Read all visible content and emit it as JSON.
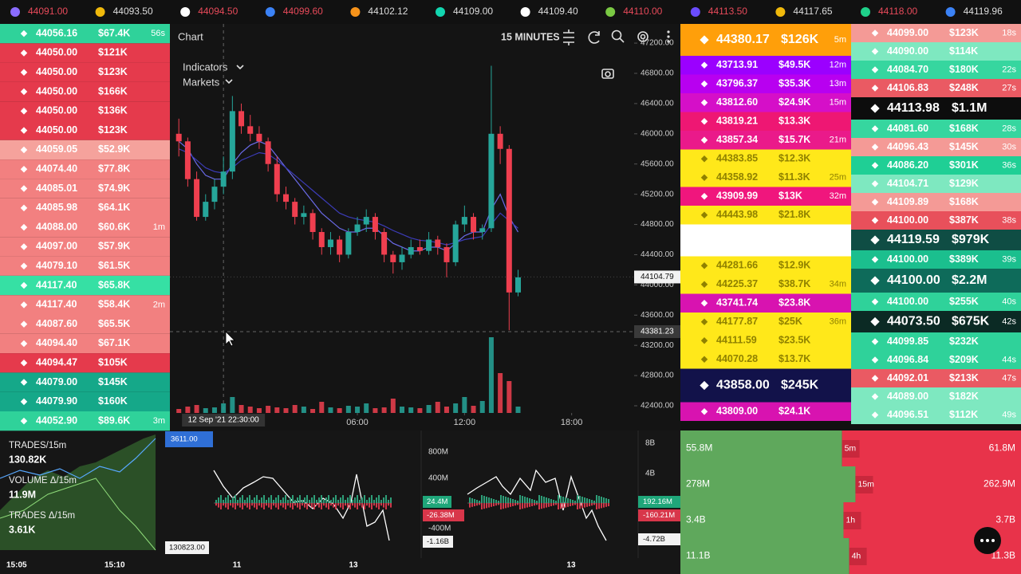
{
  "ticker": [
    {
      "price": "44091.00",
      "color": "#e84a5a",
      "icon": "#8a6cff"
    },
    {
      "price": "44093.50",
      "color": "#dddddd",
      "icon": "#f0b90b"
    },
    {
      "price": "44094.50",
      "color": "#e84a5a",
      "icon": "#ffffff"
    },
    {
      "price": "44099.60",
      "color": "#e84a5a",
      "icon": "#3b82f6"
    },
    {
      "price": "44102.12",
      "color": "#dddddd",
      "icon": "#f7931a"
    },
    {
      "price": "44109.00",
      "color": "#dddddd",
      "icon": "#12d6b0"
    },
    {
      "price": "44109.40",
      "color": "#dddddd",
      "icon": "#ffffff"
    },
    {
      "price": "44110.00",
      "color": "#e84a5a",
      "icon": "#7ac943"
    },
    {
      "price": "44113.50",
      "color": "#e84a5a",
      "icon": "#6a4cff"
    },
    {
      "price": "44117.65",
      "color": "#dddddd",
      "icon": "#f0b90b"
    },
    {
      "price": "44118.00",
      "color": "#e84a5a",
      "icon": "#1fd18a"
    },
    {
      "price": "44119.96",
      "color": "#dddddd",
      "icon": "#3b82f6"
    }
  ],
  "left_trades": [
    {
      "price": "44056.16",
      "amount": "$67.4K",
      "age": "56s",
      "color": "#2fd29a"
    },
    {
      "price": "44050.00",
      "amount": "$121K",
      "color": "#e53a4c"
    },
    {
      "price": "44050.00",
      "amount": "$123K",
      "color": "#e53a4c"
    },
    {
      "price": "44050.00",
      "amount": "$166K",
      "color": "#e53a4c"
    },
    {
      "price": "44050.00",
      "amount": "$136K",
      "color": "#e53a4c"
    },
    {
      "price": "44050.00",
      "amount": "$123K",
      "color": "#e53a4c"
    },
    {
      "price": "44059.05",
      "amount": "$52.9K",
      "color": "#f5a29c"
    },
    {
      "price": "44074.40",
      "amount": "$77.8K",
      "color": "#f28080"
    },
    {
      "price": "44085.01",
      "amount": "$74.9K",
      "color": "#f28080"
    },
    {
      "price": "44085.98",
      "amount": "$64.1K",
      "color": "#f28080"
    },
    {
      "price": "44088.00",
      "amount": "$60.6K",
      "age": "1m",
      "color": "#f28080"
    },
    {
      "price": "44097.00",
      "amount": "$57.9K",
      "color": "#f28080"
    },
    {
      "price": "44079.10",
      "amount": "$61.5K",
      "color": "#f28080"
    },
    {
      "price": "44117.40",
      "amount": "$65.8K",
      "color": "#36e0a4"
    },
    {
      "price": "44117.40",
      "amount": "$58.4K",
      "age": "2m",
      "color": "#f28080"
    },
    {
      "price": "44087.60",
      "amount": "$65.5K",
      "color": "#f28080"
    },
    {
      "price": "44094.40",
      "amount": "$67.1K",
      "color": "#f28080"
    },
    {
      "price": "44094.47",
      "amount": "$105K",
      "color": "#e53a4c"
    },
    {
      "price": "44079.00",
      "amount": "$145K",
      "color": "#15a889"
    },
    {
      "price": "44079.90",
      "amount": "$160K",
      "color": "#15a889"
    },
    {
      "price": "44052.90",
      "amount": "$89.6K",
      "age": "3m",
      "color": "#2fd29a"
    }
  ],
  "chart": {
    "title": "Chart",
    "timeframe": "15 MINUTES",
    "menus": [
      "Indicators",
      "Markets"
    ],
    "ylim": [
      42073,
      47454
    ],
    "xlim": [
      -1,
      51
    ],
    "yticks": [
      {
        "value": 42400,
        "label": "42400.00"
      },
      {
        "value": 42800,
        "label": "42800.00"
      },
      {
        "value": 43200,
        "label": "43200.00"
      },
      {
        "value": 43600,
        "label": "43600.00"
      },
      {
        "value": 44000,
        "label": "44000.00"
      },
      {
        "value": 44400,
        "label": "44400.00"
      },
      {
        "value": 44800,
        "label": "44800.00"
      },
      {
        "value": 45200,
        "label": "45200.00"
      },
      {
        "value": 45600,
        "label": "45600.00"
      },
      {
        "value": 46000,
        "label": "46000.00"
      },
      {
        "value": 46400,
        "label": "46400.00"
      },
      {
        "value": 46800,
        "label": "46800.00"
      },
      {
        "value": 47200,
        "label": "47200.00"
      }
    ],
    "xticks": [
      {
        "value": 20,
        "label": "06:00"
      },
      {
        "value": 32,
        "label": "12:00"
      },
      {
        "value": 44,
        "label": "18:00"
      }
    ],
    "crosshair_time": {
      "value": 5,
      "label": "12 Sep '21 22:30:00"
    },
    "last_price": {
      "value": 44104.79,
      "label": "44104.79"
    },
    "crosshair_price": {
      "value": 43381.23,
      "label": "43381.23"
    },
    "up_color": "#26a69a",
    "down_color": "#ef3f4f",
    "candles": [
      [
        46000,
        46200,
        45700,
        45900
      ],
      [
        45900,
        45950,
        45300,
        45400
      ],
      [
        45400,
        45500,
        44850,
        44900
      ],
      [
        44900,
        45200,
        44850,
        45100
      ],
      [
        45100,
        45400,
        45000,
        45300
      ],
      [
        45300,
        45700,
        45200,
        45500
      ],
      [
        45500,
        46500,
        45400,
        46300
      ],
      [
        46300,
        46400,
        46000,
        46100
      ],
      [
        46100,
        46250,
        45900,
        46000
      ],
      [
        46000,
        46100,
        45800,
        45900
      ],
      [
        45900,
        45950,
        45500,
        45600
      ],
      [
        45600,
        45700,
        45100,
        45200
      ],
      [
        45200,
        45300,
        45000,
        45100
      ],
      [
        45100,
        45150,
        44800,
        44900
      ],
      [
        44900,
        45050,
        44800,
        44950
      ],
      [
        44950,
        45000,
        44600,
        44700
      ],
      [
        44700,
        44750,
        44400,
        44500
      ],
      [
        44500,
        44700,
        44400,
        44600
      ],
      [
        44600,
        44650,
        44300,
        44400
      ],
      [
        44400,
        44750,
        44350,
        44700
      ],
      [
        44700,
        44900,
        44650,
        44800
      ],
      [
        44800,
        45000,
        44700,
        44900
      ],
      [
        44900,
        44950,
        44600,
        44700
      ],
      [
        44700,
        44750,
        44300,
        44400
      ],
      [
        44400,
        44450,
        44150,
        44300
      ],
      [
        44300,
        44500,
        44200,
        44400
      ],
      [
        44400,
        44600,
        44350,
        44500
      ],
      [
        44500,
        44600,
        44400,
        44450
      ],
      [
        44450,
        44700,
        44400,
        44600
      ],
      [
        44600,
        44650,
        44400,
        44500
      ],
      [
        44500,
        44550,
        44100,
        44300
      ],
      [
        44300,
        44850,
        44250,
        44800
      ],
      [
        44800,
        45050,
        44700,
        44900
      ],
      [
        44900,
        44950,
        44600,
        44700
      ],
      [
        44700,
        44800,
        44600,
        44750
      ],
      [
        44750,
        46900,
        44700,
        46000
      ],
      [
        46000,
        46100,
        45600,
        45800
      ],
      [
        45800,
        45850,
        43400,
        43900
      ],
      [
        43900,
        44200,
        43850,
        44100
      ]
    ],
    "ma_fast": {
      "color": "#6a6ae8",
      "values": [
        45900,
        45800,
        45600,
        45450,
        45400,
        45400,
        45600,
        45750,
        45850,
        45900,
        45850,
        45700,
        45550,
        45400,
        45250,
        45100,
        44950,
        44850,
        44750,
        44700,
        44700,
        44750,
        44750,
        44650,
        44550,
        44500,
        44450,
        44450,
        44500,
        44500,
        44450,
        44550,
        44650,
        44700,
        44700,
        45000,
        45200,
        44900,
        44700
      ]
    },
    "ma_slow": {
      "color": "#3c3cb8",
      "values": [
        45800,
        45750,
        45650,
        45550,
        45500,
        45480,
        45550,
        45650,
        45700,
        45750,
        45730,
        45650,
        45550,
        45450,
        45350,
        45250,
        45150,
        45050,
        44950,
        44900,
        44870,
        44850,
        44830,
        44780,
        44720,
        44670,
        44620,
        44590,
        44580,
        44560,
        44530,
        44560,
        44600,
        44620,
        44640,
        44800,
        44950,
        44850,
        44750
      ]
    },
    "volume": [
      5,
      8,
      10,
      6,
      7,
      12,
      20,
      10,
      8,
      6,
      9,
      7,
      6,
      10,
      8,
      5,
      14,
      7,
      6,
      9,
      8,
      12,
      6,
      7,
      18,
      8,
      7,
      6,
      10,
      14,
      8,
      12,
      20,
      9,
      15,
      95,
      50,
      40,
      8
    ]
  },
  "feed": [
    {
      "price": "44380.17",
      "amount": "$126K",
      "age": "5m",
      "color": "#ff9f0a"
    },
    {
      "price": "43713.91",
      "amount": "$49.5K",
      "age": "12m",
      "color": "#9b00ff"
    },
    {
      "price": "43796.37",
      "amount": "$35.3K",
      "age": "13m",
      "color": "#b800f0"
    },
    {
      "price": "43812.60",
      "amount": "$24.9K",
      "age": "15m",
      "color": "#d50fc8"
    },
    {
      "price": "43819.21",
      "amount": "$13.3K",
      "color": "#ee1773"
    },
    {
      "price": "43857.34",
      "amount": "$15.7K",
      "age": "21m",
      "color": "#ea1a8a"
    },
    {
      "price": "44383.85",
      "amount": "$12.3K",
      "color": "#ffe81a"
    },
    {
      "price": "44358.92",
      "amount": "$11.3K",
      "age": "25m",
      "color": "#ffe81a"
    },
    {
      "price": "43909.99",
      "amount": "$13K",
      "age": "32m",
      "color": "#f0167d"
    },
    {
      "price": "44443.98",
      "amount": "$21.8K",
      "color": "#ffe81a"
    },
    {
      "color": "#ffffff"
    },
    {
      "price": "44281.66",
      "amount": "$12.9K",
      "color": "#ffe81a"
    },
    {
      "price": "44225.37",
      "amount": "$38.7K",
      "age": "34m",
      "color": "#ffe81a"
    },
    {
      "price": "43741.74",
      "amount": "$23.8K",
      "color": "#d813b0"
    },
    {
      "price": "44177.87",
      "amount": "$25K",
      "age": "36m",
      "color": "#ffe81a"
    },
    {
      "price": "44111.59",
      "amount": "$23.5K",
      "color": "#ffe81a"
    },
    {
      "price": "44070.28",
      "amount": "$13.7K",
      "color": "#ffe81a"
    },
    {
      "price": "43858.00",
      "amount": "$245K",
      "color": "#12124a"
    },
    {
      "price": "43809.00",
      "amount": "$24.1K",
      "color": "#d813b0"
    }
  ],
  "whale_trades": [
    {
      "price": "44099.00",
      "amount": "$123K",
      "age": "18s",
      "color": "#f49a96"
    },
    {
      "price": "44090.00",
      "amount": "$114K",
      "color": "#7ee8c0"
    },
    {
      "price": "44084.70",
      "amount": "$180K",
      "age": "22s",
      "color": "#36d69f"
    },
    {
      "price": "44106.83",
      "amount": "$248K",
      "age": "27s",
      "color": "#ea5a63"
    },
    {
      "price": "44113.98",
      "amount": "$1.1M",
      "color": "#0d0d0d"
    },
    {
      "price": "44081.60",
      "amount": "$168K",
      "age": "28s",
      "color": "#36d69f"
    },
    {
      "price": "44096.43",
      "amount": "$145K",
      "age": "30s",
      "color": "#f49a96"
    },
    {
      "price": "44086.20",
      "amount": "$301K",
      "age": "36s",
      "color": "#1fcf95"
    },
    {
      "price": "44104.71",
      "amount": "$129K",
      "color": "#7ee8c0"
    },
    {
      "price": "44109.89",
      "amount": "$168K",
      "color": "#f49a96"
    },
    {
      "price": "44100.00",
      "amount": "$387K",
      "age": "38s",
      "color": "#e8505b"
    },
    {
      "price": "44119.59",
      "amount": "$979K",
      "color": "#0f4d44"
    },
    {
      "price": "44100.00",
      "amount": "$389K",
      "age": "39s",
      "color": "#1bbf8e"
    },
    {
      "price": "44100.00",
      "amount": "$2.2M",
      "color": "#0e6b5a"
    },
    {
      "price": "44100.00",
      "amount": "$255K",
      "age": "40s",
      "color": "#2fd29a"
    },
    {
      "price": "44073.50",
      "amount": "$675K",
      "age": "42s",
      "color": "#0b2a24"
    },
    {
      "price": "44099.85",
      "amount": "$232K",
      "color": "#2fd29a"
    },
    {
      "price": "44096.84",
      "amount": "$209K",
      "age": "44s",
      "color": "#2fd29a"
    },
    {
      "price": "44092.01",
      "amount": "$213K",
      "age": "47s",
      "color": "#ea5a63"
    },
    {
      "price": "44089.00",
      "amount": "$182K",
      "color": "#7ee8c0"
    },
    {
      "price": "44096.51",
      "amount": "$112K",
      "age": "49s",
      "color": "#7ee8c0"
    }
  ],
  "stats": [
    {
      "label": "TRADES/15m",
      "value": "130.82K"
    },
    {
      "label": "VOLUME Δ/15m",
      "value": "11.9M"
    },
    {
      "label": "TRADES Δ/15m",
      "value": "3.61K"
    }
  ],
  "stats_times": [
    "15:05",
    "15:10"
  ],
  "lower": {
    "left_tags": [
      "3611.00",
      "130823.00"
    ],
    "x_labels": [
      "11",
      "13",
      "13"
    ],
    "mid_ticks": [
      "800M",
      "400M",
      "-400M"
    ],
    "mid_tags": [
      "24.4M",
      "-26.38M",
      "-1.16B"
    ],
    "right_ticks": [
      "8B",
      "4B"
    ],
    "right_tags": [
      "192.16M",
      "-160.21M",
      "-4.72B"
    ]
  },
  "depth": {
    "buy_color": "#5fa85c",
    "sell_color": "#e8334a",
    "rows": [
      {
        "buy": {
          "value": 55800000,
          "label": "55.8M"
        },
        "tf": "5m",
        "sell": {
          "value": 61800000,
          "label": "61.8M"
        }
      },
      {
        "buy": {
          "value": 278000000,
          "label": "278M"
        },
        "tf": "15m",
        "sell": {
          "value": 262900000,
          "label": "262.9M"
        }
      },
      {
        "buy": {
          "value": 3400000000,
          "label": "3.4B"
        },
        "tf": "1h",
        "sell": {
          "value": 3700000000,
          "label": "3.7B"
        }
      },
      {
        "buy": {
          "value": 11100000000,
          "label": "11.1B"
        },
        "tf": "4h",
        "sell": {
          "value": 11300000000,
          "label": "11.3B"
        }
      }
    ]
  }
}
